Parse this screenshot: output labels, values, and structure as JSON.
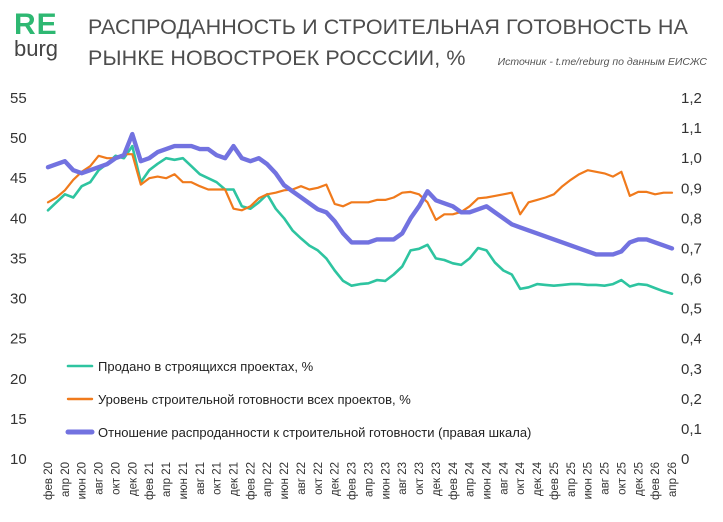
{
  "logo": {
    "top": "RE",
    "bottom": "burg"
  },
  "header": {
    "title": "РАСПРОДАННОСТЬ И СТРОИТЕЛЬНАЯ ГОТОВНОСТЬ НА РЫНКЕ НОВОСТРОЕК РОСССИИ, %",
    "source": "Источник - t.me/reburg по данным ЕИСЖС"
  },
  "chart_data": {
    "type": "line",
    "x": [
      "фев 20",
      "мар 20",
      "апр 20",
      "май 20",
      "июн 20",
      "июл 20",
      "авг 20",
      "сен 20",
      "окт 20",
      "ноя 20",
      "дек 20",
      "янв 21",
      "фев 21",
      "мар 21",
      "апр 21",
      "май 21",
      "июн 21",
      "июл 21",
      "авг 21",
      "сен 21",
      "окт 21",
      "ноя 21",
      "дек 21",
      "янв 22",
      "фев 22",
      "мар 22",
      "апр 22",
      "май 22",
      "июн 22",
      "июл 22",
      "авг 22",
      "сен 22",
      "окт 22",
      "ноя 22",
      "дек 22",
      "янв 23",
      "фев 23",
      "мар 23",
      "апр 23",
      "май 23",
      "июн 23",
      "июл 23",
      "авг 23",
      "сен 23",
      "окт 23",
      "ноя 23",
      "дек 23",
      "янв 24",
      "фев 24",
      "мар 24",
      "апр 24",
      "май 24",
      "июн 24",
      "июл 24",
      "авг 24",
      "сен 24",
      "окт 24",
      "ноя 24",
      "дек 24",
      "янв 25",
      "фев 25",
      "мар 25",
      "апр 25",
      "май 25",
      "июн 25",
      "июл 25",
      "авг 25",
      "сен 25",
      "окт 25",
      "ноя 25",
      "дек 25",
      "янв 26",
      "фев 26",
      "мар 26",
      "апр 26"
    ],
    "x_tick_labels": [
      "фев 20",
      "апр 20",
      "июн 20",
      "авг 20",
      "окт 20",
      "дек 20",
      "фев 21",
      "апр 21",
      "июн 21",
      "авг 21",
      "окт 21",
      "дек 21",
      "фев 22",
      "апр 22",
      "июн 22",
      "авг 22",
      "окт 22",
      "дек 22",
      "фев 23",
      "апр 23",
      "июн 23",
      "авг 23",
      "окт 23",
      "дек 23",
      "фев 24",
      "апр 24",
      "июн 24",
      "авг 24",
      "окт 24",
      "дек 24",
      "фев 25",
      "апр 25",
      "июн 25",
      "авг 25",
      "окт 25",
      "дек 25",
      "фев 26",
      "апр 26"
    ],
    "y_left": {
      "min": 10,
      "max": 55,
      "ticks": [
        10,
        15,
        20,
        25,
        30,
        35,
        40,
        45,
        50,
        55
      ]
    },
    "y_right": {
      "min": 0,
      "max": 1.2,
      "ticks": [
        "0",
        "0,1",
        "0,2",
        "0,3",
        "0,4",
        "0,5",
        "0,6",
        "0,7",
        "0,8",
        "0,9",
        "1,0",
        "1,1",
        "1,2"
      ]
    },
    "grid": false,
    "legend_placement": "bottom-left",
    "series": [
      {
        "name": "Продано в строящихся проектах, %",
        "axis": "left",
        "color": "#2ec4a0",
        "values": [
          41.0,
          42.0,
          43.0,
          42.6,
          44.0,
          44.5,
          46.0,
          46.8,
          47.8,
          47.5,
          49.0,
          44.5,
          46.0,
          46.8,
          47.5,
          47.3,
          47.5,
          46.5,
          45.5,
          45.0,
          44.5,
          43.6,
          43.6,
          41.5,
          41.2,
          42.0,
          43.0,
          41.2,
          40.0,
          38.5,
          37.5,
          36.6,
          36.0,
          35.0,
          33.5,
          32.2,
          31.6,
          31.8,
          31.9,
          32.3,
          32.2,
          33.0,
          34.0,
          36.0,
          36.2,
          36.7,
          35.0,
          34.8,
          34.4,
          34.2,
          35.0,
          36.3,
          36.0,
          34.5,
          33.5,
          33.0,
          31.2,
          31.4,
          31.8,
          31.7,
          31.6,
          31.7,
          31.8,
          31.8,
          31.7,
          31.7,
          31.6,
          31.8,
          32.3,
          31.5,
          31.8,
          31.7,
          31.3,
          30.9,
          30.6
        ]
      },
      {
        "name": "Уровень строительной готовности всех проектов, %",
        "axis": "left",
        "color": "#f07a1c",
        "values": [
          42.0,
          42.6,
          43.5,
          44.8,
          45.8,
          46.5,
          47.8,
          47.5,
          47.5,
          48.0,
          48.0,
          44.2,
          45.0,
          45.2,
          45.0,
          45.5,
          44.5,
          44.5,
          44.0,
          43.6,
          43.6,
          43.6,
          41.2,
          41.0,
          41.5,
          42.5,
          43.0,
          43.2,
          43.5,
          43.6,
          44.0,
          43.6,
          43.8,
          44.2,
          41.8,
          41.5,
          42.0,
          42.0,
          42.0,
          42.3,
          42.3,
          42.6,
          43.2,
          43.3,
          43.0,
          42.0,
          39.8,
          40.5,
          40.5,
          40.8,
          41.5,
          42.5,
          42.6,
          42.8,
          43.0,
          43.2,
          40.5,
          42.0,
          42.3,
          42.6,
          43.0,
          44.0,
          44.8,
          45.5,
          46.0,
          45.8,
          45.6,
          45.2,
          45.8,
          42.8,
          43.3,
          43.3,
          43.0,
          43.2,
          43.2
        ]
      },
      {
        "name": "Отношение распроданности к строительной готовности (правая шкала)",
        "axis": "right",
        "color": "#7272e0",
        "values": [
          0.97,
          0.98,
          0.99,
          0.96,
          0.95,
          0.96,
          0.97,
          0.98,
          1.0,
          1.01,
          1.08,
          0.99,
          1.0,
          1.02,
          1.03,
          1.04,
          1.04,
          1.04,
          1.03,
          1.03,
          1.01,
          1.0,
          1.04,
          1.0,
          0.99,
          1.0,
          0.98,
          0.95,
          0.91,
          0.89,
          0.87,
          0.85,
          0.83,
          0.82,
          0.79,
          0.75,
          0.72,
          0.72,
          0.72,
          0.73,
          0.73,
          0.73,
          0.75,
          0.8,
          0.84,
          0.89,
          0.86,
          0.85,
          0.84,
          0.82,
          0.82,
          0.83,
          0.84,
          0.82,
          0.8,
          0.78,
          0.77,
          0.76,
          0.75,
          0.74,
          0.73,
          0.72,
          0.71,
          0.7,
          0.69,
          0.68,
          0.68,
          0.68,
          0.69,
          0.72,
          0.73,
          0.73,
          0.72,
          0.71,
          0.7
        ]
      }
    ]
  }
}
